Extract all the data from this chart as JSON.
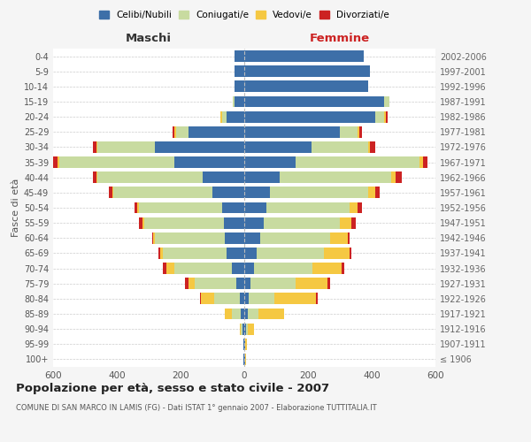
{
  "age_groups": [
    "100+",
    "95-99",
    "90-94",
    "85-89",
    "80-84",
    "75-79",
    "70-74",
    "65-69",
    "60-64",
    "55-59",
    "50-54",
    "45-49",
    "40-44",
    "35-39",
    "30-34",
    "25-29",
    "20-24",
    "15-19",
    "10-14",
    "5-9",
    "0-4"
  ],
  "birth_years": [
    "≤ 1906",
    "1907-1911",
    "1912-1916",
    "1917-1921",
    "1922-1926",
    "1927-1931",
    "1932-1936",
    "1937-1941",
    "1942-1946",
    "1947-1951",
    "1952-1956",
    "1957-1961",
    "1962-1966",
    "1967-1971",
    "1972-1976",
    "1977-1981",
    "1982-1986",
    "1987-1991",
    "1992-1996",
    "1997-2001",
    "2002-2006"
  ],
  "male": {
    "celibi": [
      2,
      2,
      5,
      10,
      15,
      25,
      40,
      55,
      60,
      65,
      70,
      100,
      130,
      220,
      280,
      175,
      55,
      30,
      30,
      30,
      30
    ],
    "coniugati": [
      0,
      1,
      5,
      30,
      80,
      130,
      180,
      200,
      220,
      250,
      260,
      310,
      330,
      360,
      180,
      40,
      15,
      5,
      0,
      0,
      0
    ],
    "vedovi": [
      0,
      0,
      5,
      20,
      40,
      20,
      25,
      10,
      5,
      5,
      5,
      5,
      5,
      5,
      5,
      5,
      5,
      0,
      0,
      0,
      0
    ],
    "divorziati": [
      0,
      0,
      0,
      0,
      5,
      10,
      10,
      5,
      5,
      10,
      10,
      10,
      10,
      15,
      10,
      5,
      0,
      0,
      0,
      0,
      0
    ]
  },
  "female": {
    "nubili": [
      2,
      2,
      5,
      10,
      15,
      20,
      30,
      40,
      50,
      60,
      70,
      80,
      110,
      160,
      210,
      300,
      410,
      440,
      390,
      395,
      375
    ],
    "coniugate": [
      0,
      1,
      5,
      35,
      80,
      140,
      185,
      210,
      220,
      240,
      260,
      310,
      350,
      390,
      180,
      55,
      30,
      15,
      0,
      0,
      0
    ],
    "vedove": [
      3,
      5,
      20,
      80,
      130,
      100,
      90,
      80,
      55,
      35,
      25,
      20,
      15,
      10,
      5,
      5,
      5,
      0,
      0,
      0,
      0
    ],
    "divorziate": [
      0,
      0,
      0,
      0,
      5,
      10,
      10,
      5,
      5,
      15,
      15,
      15,
      20,
      15,
      15,
      10,
      5,
      0,
      0,
      0,
      0
    ]
  },
  "colors": {
    "celibi": "#3d6fa8",
    "coniugati": "#c8dba0",
    "vedovi": "#f5c842",
    "divorziati": "#cc2222"
  },
  "title": "Popolazione per età, sesso e stato civile - 2007",
  "subtitle": "COMUNE DI SAN MARCO IN LAMIS (FG) - Dati ISTAT 1° gennaio 2007 - Elaborazione TUTTITALIA.IT",
  "xlabel_left": "Maschi",
  "xlabel_right": "Femmine",
  "ylabel_left": "Fasce di età",
  "legend_labels": [
    "Celibi/Nubili",
    "Coniugati/e",
    "Vedovi/e",
    "Divorziati/e"
  ],
  "xlim": 600,
  "background_color": "#f5f5f5",
  "plot_bg": "#ffffff"
}
